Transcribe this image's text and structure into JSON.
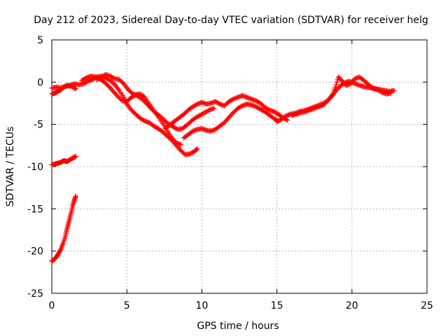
{
  "chart_data": {
    "type": "scatter",
    "title": "Day 212 of 2023, Sidereal Day-to-day VTEC variation (SDTVAR) for receiver helg",
    "xlabel": "GPS time / hours",
    "ylabel": "SDTVAR / TECUs",
    "xlim": [
      0,
      25
    ],
    "ylim": [
      -25,
      5
    ],
    "xticks": [
      0,
      5,
      10,
      15,
      20,
      25
    ],
    "yticks": [
      -25,
      -20,
      -15,
      -10,
      -5,
      0,
      5
    ],
    "xtick_labels": [
      "0",
      "5",
      "10",
      "15",
      "20",
      "25"
    ],
    "ytick_labels": [
      "-25",
      "-20",
      "-15",
      "-10",
      "-5",
      "0",
      "5"
    ],
    "grid": true,
    "marker": "plus",
    "color": "#ff0000",
    "series": [
      {
        "name": "trace-early-main",
        "points": [
          [
            0.0,
            -0.7
          ],
          [
            0.3,
            -0.6
          ],
          [
            0.6,
            -0.7
          ],
          [
            0.9,
            -0.5
          ],
          [
            1.2,
            -0.4
          ],
          [
            1.5,
            -0.2
          ],
          [
            1.8,
            -0.3
          ],
          [
            2.1,
            -0.2
          ],
          [
            2.4,
            0.1
          ],
          [
            2.7,
            0.3
          ],
          [
            3.0,
            0.6
          ],
          [
            3.3,
            0.7
          ],
          [
            3.6,
            0.5
          ],
          [
            3.9,
            0.2
          ],
          [
            4.2,
            -0.3
          ],
          [
            4.5,
            -1.0
          ],
          [
            4.8,
            -1.8
          ],
          [
            5.0,
            -2.6
          ],
          [
            5.3,
            -3.3
          ],
          [
            5.6,
            -3.8
          ],
          [
            5.9,
            -4.3
          ],
          [
            6.2,
            -4.6
          ],
          [
            6.5,
            -4.8
          ],
          [
            6.8,
            -5.2
          ],
          [
            7.1,
            -5.5
          ],
          [
            7.4,
            -5.9
          ],
          [
            7.7,
            -6.4
          ],
          [
            8.0,
            -6.9
          ],
          [
            8.3,
            -7.5
          ],
          [
            8.6,
            -8.1
          ],
          [
            8.9,
            -8.6
          ],
          [
            9.2,
            -8.5
          ],
          [
            9.5,
            -8.2
          ],
          [
            9.7,
            -7.9
          ]
        ]
      },
      {
        "name": "trace-early-upper",
        "points": [
          [
            0.0,
            -1.4
          ],
          [
            0.2,
            -1.3
          ],
          [
            0.4,
            -1.1
          ],
          [
            0.6,
            -0.9
          ],
          [
            0.8,
            -0.6
          ],
          [
            1.0,
            -0.4
          ],
          [
            1.3,
            -0.5
          ],
          [
            1.6,
            -0.8
          ]
        ]
      },
      {
        "name": "trace-mid-a",
        "points": [
          [
            2.0,
            0.2
          ],
          [
            2.3,
            0.5
          ],
          [
            2.6,
            0.7
          ],
          [
            2.9,
            0.6
          ],
          [
            3.2,
            0.4
          ],
          [
            3.5,
            0.0
          ],
          [
            3.8,
            -0.5
          ],
          [
            4.1,
            -1.1
          ],
          [
            4.4,
            -1.7
          ],
          [
            4.7,
            -2.2
          ],
          [
            5.0,
            -2.3
          ],
          [
            5.3,
            -1.8
          ],
          [
            5.6,
            -1.5
          ],
          [
            5.9,
            -1.4
          ],
          [
            6.2,
            -1.8
          ],
          [
            6.5,
            -2.6
          ],
          [
            6.8,
            -3.4
          ],
          [
            7.1,
            -4.1
          ],
          [
            7.4,
            -4.9
          ],
          [
            7.7,
            -5.8
          ],
          [
            8.0,
            -6.6
          ],
          [
            8.3,
            -7.2
          ],
          [
            8.6,
            -7.4
          ]
        ]
      },
      {
        "name": "trace-mid-b",
        "points": [
          [
            3.0,
            0.3
          ],
          [
            3.3,
            0.6
          ],
          [
            3.6,
            0.9
          ],
          [
            3.9,
            0.7
          ],
          [
            4.2,
            0.4
          ],
          [
            4.5,
            0.3
          ],
          [
            4.8,
            -0.2
          ],
          [
            5.1,
            -0.9
          ],
          [
            5.4,
            -1.4
          ],
          [
            5.7,
            -1.6
          ],
          [
            6.0,
            -2.0
          ],
          [
            6.3,
            -2.5
          ],
          [
            6.6,
            -3.1
          ],
          [
            6.9,
            -3.6
          ],
          [
            7.2,
            -4.0
          ],
          [
            7.5,
            -4.5
          ],
          [
            7.8,
            -5.0
          ],
          [
            8.1,
            -5.3
          ],
          [
            8.4,
            -5.6
          ],
          [
            8.7,
            -5.5
          ],
          [
            9.0,
            -5.1
          ],
          [
            9.3,
            -4.6
          ],
          [
            9.6,
            -4.2
          ],
          [
            9.9,
            -3.9
          ],
          [
            10.2,
            -3.6
          ],
          [
            10.5,
            -3.3
          ],
          [
            10.8,
            -3.1
          ]
        ]
      },
      {
        "name": "trace-recovery-a",
        "points": [
          [
            7.6,
            -5.5
          ],
          [
            7.9,
            -5.0
          ],
          [
            8.2,
            -4.6
          ],
          [
            8.5,
            -4.2
          ],
          [
            8.8,
            -3.8
          ],
          [
            9.1,
            -3.3
          ],
          [
            9.4,
            -2.9
          ],
          [
            9.7,
            -2.6
          ],
          [
            10.0,
            -2.4
          ],
          [
            10.3,
            -2.6
          ],
          [
            10.6,
            -2.5
          ],
          [
            10.9,
            -2.3
          ],
          [
            11.2,
            -2.6
          ],
          [
            11.5,
            -2.8
          ],
          [
            11.8,
            -2.3
          ],
          [
            12.1,
            -2.0
          ],
          [
            12.4,
            -1.8
          ],
          [
            12.7,
            -1.6
          ],
          [
            13.0,
            -1.8
          ],
          [
            13.3,
            -2.0
          ],
          [
            13.6,
            -2.2
          ],
          [
            13.9,
            -2.5
          ],
          [
            14.2,
            -3.0
          ],
          [
            14.5,
            -3.3
          ],
          [
            14.8,
            -3.5
          ],
          [
            15.1,
            -3.8
          ],
          [
            15.4,
            -4.2
          ],
          [
            15.7,
            -4.5
          ]
        ]
      },
      {
        "name": "trace-recovery-b",
        "points": [
          [
            8.8,
            -6.6
          ],
          [
            9.1,
            -6.2
          ],
          [
            9.4,
            -5.8
          ],
          [
            9.7,
            -5.6
          ],
          [
            10.0,
            -5.5
          ],
          [
            10.3,
            -5.7
          ],
          [
            10.6,
            -5.8
          ],
          [
            10.9,
            -5.6
          ],
          [
            11.2,
            -5.2
          ],
          [
            11.5,
            -4.8
          ],
          [
            11.8,
            -4.2
          ],
          [
            12.1,
            -3.6
          ],
          [
            12.4,
            -3.1
          ],
          [
            12.7,
            -2.8
          ],
          [
            13.0,
            -2.6
          ],
          [
            13.3,
            -2.7
          ],
          [
            13.6,
            -2.9
          ],
          [
            13.9,
            -3.2
          ],
          [
            14.2,
            -3.5
          ],
          [
            14.5,
            -3.9
          ],
          [
            14.8,
            -4.3
          ],
          [
            15.1,
            -4.6
          ]
        ]
      },
      {
        "name": "trace-late-a",
        "points": [
          [
            15.0,
            -4.7
          ],
          [
            15.3,
            -4.4
          ],
          [
            15.6,
            -4.0
          ],
          [
            15.9,
            -3.8
          ],
          [
            16.2,
            -3.7
          ],
          [
            16.5,
            -3.5
          ],
          [
            16.8,
            -3.4
          ],
          [
            17.1,
            -3.2
          ],
          [
            17.4,
            -3.0
          ],
          [
            17.7,
            -2.8
          ],
          [
            18.0,
            -2.6
          ],
          [
            18.3,
            -2.3
          ],
          [
            18.6,
            -1.8
          ],
          [
            18.9,
            -1.1
          ],
          [
            19.2,
            -0.5
          ],
          [
            19.5,
            -0.1
          ],
          [
            19.8,
            0.1
          ],
          [
            20.1,
            -0.1
          ],
          [
            20.4,
            -0.3
          ],
          [
            20.7,
            -0.5
          ],
          [
            21.0,
            -0.6
          ],
          [
            21.3,
            -0.7
          ],
          [
            21.6,
            -0.8
          ],
          [
            21.9,
            -0.9
          ],
          [
            22.2,
            -1.0
          ],
          [
            22.5,
            -1.1
          ],
          [
            22.8,
            -1.0
          ]
        ]
      },
      {
        "name": "trace-late-b",
        "points": [
          [
            16.0,
            -3.9
          ],
          [
            16.3,
            -3.8
          ],
          [
            16.6,
            -3.6
          ],
          [
            16.9,
            -3.5
          ],
          [
            17.2,
            -3.3
          ],
          [
            17.5,
            -3.1
          ],
          [
            17.8,
            -2.9
          ],
          [
            18.1,
            -2.7
          ],
          [
            18.4,
            -2.2
          ],
          [
            18.7,
            -1.5
          ],
          [
            18.9,
            -0.6
          ],
          [
            19.1,
            0.6
          ],
          [
            19.3,
            0.2
          ],
          [
            19.6,
            -0.4
          ],
          [
            19.9,
            -0.2
          ],
          [
            20.2,
            0.4
          ],
          [
            20.5,
            0.6
          ],
          [
            20.8,
            0.2
          ],
          [
            21.1,
            -0.3
          ],
          [
            21.4,
            -0.7
          ],
          [
            21.7,
            -0.9
          ],
          [
            22.0,
            -1.2
          ],
          [
            22.3,
            -1.4
          ],
          [
            22.6,
            -1.3
          ]
        ]
      },
      {
        "name": "trace-minus10-arc",
        "points": [
          [
            0.0,
            -9.8
          ],
          [
            0.2,
            -9.7
          ],
          [
            0.4,
            -9.6
          ],
          [
            0.6,
            -9.5
          ],
          [
            0.8,
            -9.3
          ],
          [
            1.0,
            -9.4
          ],
          [
            1.2,
            -9.2
          ],
          [
            1.4,
            -9.0
          ],
          [
            1.6,
            -8.8
          ]
        ]
      },
      {
        "name": "trace-steep-rise",
        "points": [
          [
            0.0,
            -21.2
          ],
          [
            0.15,
            -21.0
          ],
          [
            0.3,
            -20.7
          ],
          [
            0.45,
            -20.3
          ],
          [
            0.6,
            -19.8
          ],
          [
            0.75,
            -19.1
          ],
          [
            0.9,
            -18.3
          ],
          [
            1.0,
            -17.5
          ],
          [
            1.1,
            -16.8
          ],
          [
            1.2,
            -16.1
          ],
          [
            1.3,
            -15.4
          ],
          [
            1.4,
            -14.6
          ],
          [
            1.5,
            -14.0
          ],
          [
            1.6,
            -13.5
          ]
        ]
      }
    ]
  }
}
